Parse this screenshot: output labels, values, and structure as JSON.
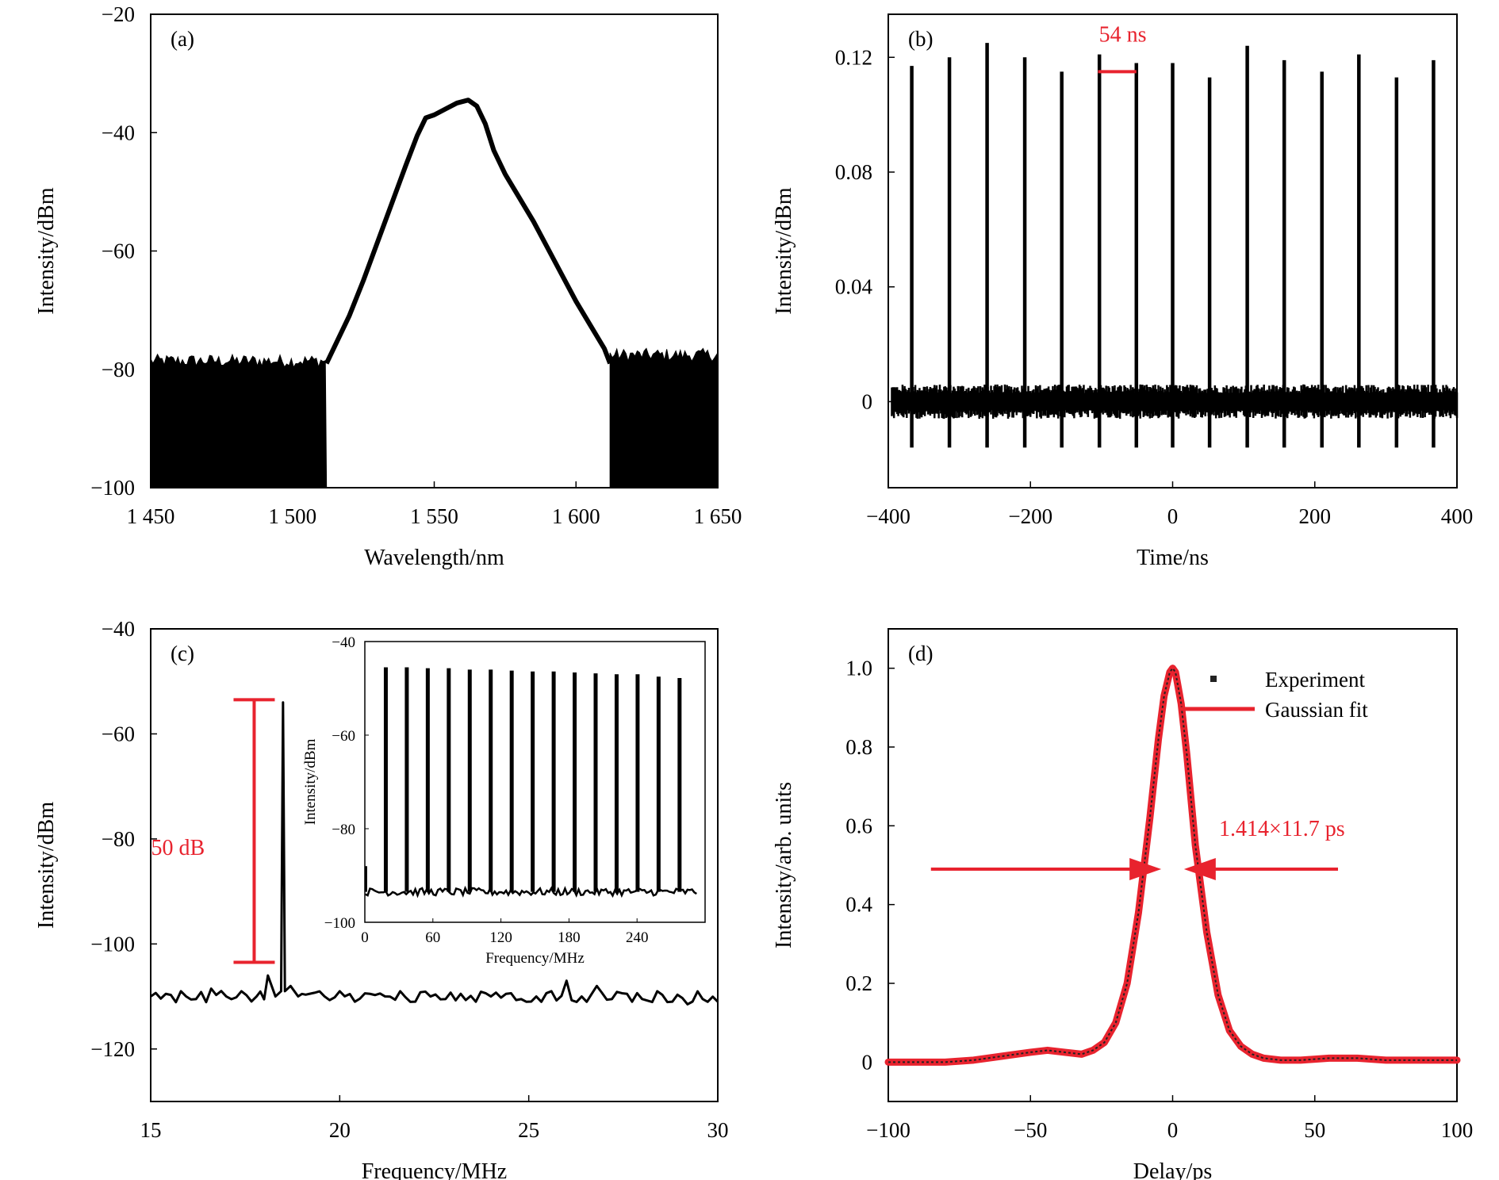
{
  "chart_data": [
    {
      "id": "a",
      "type": "line",
      "panel_label": "(a)",
      "xlabel": "Wavelength/nm",
      "ylabel": "Intensity/dBm",
      "xlim": [
        1450,
        1650
      ],
      "ylim": [
        -100,
        -20
      ],
      "xticks": [
        1450,
        1500,
        1550,
        1600,
        1650
      ],
      "xtick_labels": [
        "1 450",
        "1 500",
        "1 550",
        "1 600",
        "1 650"
      ],
      "yticks": [
        -20,
        -40,
        -60,
        -80,
        -100
      ],
      "ytick_labels": [
        "−20",
        "−40",
        "−60",
        "−80",
        "−100"
      ],
      "noise_floor_dBm": -79,
      "noise_region_left": [
        1450,
        1512
      ],
      "noise_region_right": [
        1612,
        1650
      ],
      "series": [
        {
          "name": "spectrum",
          "x": [
            1512,
            1516,
            1520,
            1525,
            1530,
            1535,
            1540,
            1544,
            1547,
            1550,
            1554,
            1558,
            1562,
            1565,
            1568,
            1571,
            1575,
            1580,
            1585,
            1590,
            1595,
            1600,
            1605,
            1610,
            1612
          ],
          "y": [
            -79,
            -75,
            -71,
            -65,
            -58.5,
            -52,
            -45.5,
            -40.5,
            -37.5,
            -37,
            -36,
            -35,
            -34.5,
            -35.5,
            -38.5,
            -43,
            -47,
            -51,
            -55,
            -59.5,
            -64,
            -68.5,
            -72.5,
            -76.5,
            -79
          ]
        }
      ]
    },
    {
      "id": "b",
      "type": "line",
      "panel_label": "(b)",
      "xlabel": "Time/ns",
      "ylabel": "Intensity/dBm",
      "xlim": [
        -400,
        400
      ],
      "ylim": [
        -0.03,
        0.135
      ],
      "xticks": [
        -400,
        -200,
        0,
        200,
        400
      ],
      "xtick_labels": [
        "−400",
        "−200",
        "0",
        "200",
        "400"
      ],
      "yticks": [
        0,
        0.04,
        0.08,
        0.12
      ],
      "ytick_labels": [
        "0",
        "0.04",
        "0.08",
        "0.12"
      ],
      "pulse_period_ns": 54,
      "baseline": 0,
      "negative_spike": -0.016,
      "pulse_times_ns": [
        -367,
        -314,
        -261,
        -208,
        -156,
        -103,
        -51,
        0,
        52,
        105,
        157,
        210,
        262,
        315,
        367
      ],
      "pulse_peaks": [
        0.117,
        0.12,
        0.125,
        0.12,
        0.115,
        0.121,
        0.118,
        0.118,
        0.113,
        0.124,
        0.119,
        0.115,
        0.121,
        0.113,
        0.119
      ],
      "annotation": {
        "text": "54 ns",
        "x_range": [
          -105,
          -51
        ],
        "y": 0.115
      }
    },
    {
      "id": "c",
      "type": "line",
      "panel_label": "(c)",
      "xlabel": "Frequency/MHz",
      "ylabel": "Intensity/dBm",
      "xlim": [
        15,
        30
      ],
      "ylim": [
        -130,
        -40
      ],
      "xticks": [
        15,
        20,
        25,
        30
      ],
      "xtick_labels": [
        "15",
        "20",
        "25",
        "30"
      ],
      "yticks": [
        -40,
        -60,
        -80,
        -100,
        -120
      ],
      "ytick_labels": [
        "−40",
        "−60",
        "−80",
        "−100",
        "−120"
      ],
      "series": [
        {
          "name": "RF spectrum",
          "x": [
            15.0,
            15.4,
            15.8,
            16.2,
            16.6,
            17.0,
            17.4,
            17.8,
            18.1,
            18.3,
            18.45,
            18.5,
            18.55,
            18.7,
            18.9,
            19.2,
            19.6,
            20.0,
            20.4,
            20.8,
            21.2,
            21.6,
            22.0,
            22.4,
            22.8,
            23.2,
            23.6,
            24.0,
            24.4,
            24.8,
            25.2,
            25.6,
            26.0,
            26.4,
            26.8,
            27.2,
            27.6,
            28.0,
            28.4,
            28.8,
            29.2,
            29.6,
            30.0
          ],
          "y": [
            -110,
            -109.5,
            -109,
            -110.5,
            -108.5,
            -110,
            -109,
            -110,
            -106,
            -110,
            -109,
            -54,
            -109,
            -108,
            -110,
            -109.5,
            -110,
            -109,
            -111,
            -109.5,
            -110,
            -109,
            -111,
            -110,
            -110.5,
            -109.5,
            -111,
            -110,
            -109.5,
            -110.5,
            -110,
            -109,
            -107,
            -110,
            -108,
            -110.5,
            -109.5,
            -110.5,
            -109,
            -111,
            -111.5,
            -110.5,
            -111
          ]
        }
      ],
      "annotation": {
        "text": "50 dB",
        "y_top": -53.5,
        "y_bottom": -103.5,
        "x": 17.8
      },
      "inset": {
        "xlabel": "Frequency/MHz",
        "ylabel": "Intensity/dBm",
        "xlim": [
          0,
          300
        ],
        "ylim": [
          -100,
          -40
        ],
        "xticks": [
          0,
          60,
          120,
          180,
          240
        ],
        "xtick_labels": [
          "0",
          "60",
          "120",
          "180",
          "240"
        ],
        "yticks": [
          -40,
          -60,
          -80,
          -100
        ],
        "ytick_labels": [
          "−40",
          "−60",
          "−80",
          "−100"
        ],
        "baseline_dBm": -93.5,
        "peak_freqs_MHz": [
          18.5,
          37,
          55.5,
          74,
          92.5,
          111,
          129.5,
          148,
          166.5,
          185,
          203.5,
          222,
          240.5,
          259,
          277.5
        ],
        "peak_levels_dBm": [
          -45.5,
          -45.5,
          -45.7,
          -45.7,
          -46,
          -46,
          -46.2,
          -46.4,
          -46.4,
          -46.6,
          -46.8,
          -47,
          -47,
          -47.5,
          -47.8
        ]
      }
    },
    {
      "id": "d",
      "type": "line",
      "panel_label": "(d)",
      "xlabel": "Delay/ps",
      "ylabel": "Intensity/arb. units",
      "xlim": [
        -100,
        100
      ],
      "ylim": [
        -0.1,
        1.1
      ],
      "xticks": [
        -100,
        -50,
        0,
        50,
        100
      ],
      "xtick_labels": [
        "−100",
        "−50",
        "0",
        "50",
        "100"
      ],
      "yticks": [
        0,
        0.2,
        0.4,
        0.6,
        0.8,
        1.0
      ],
      "ytick_labels": [
        "0",
        "0.2",
        "0.4",
        "0.6",
        "0.8",
        "1.0"
      ],
      "legend": [
        {
          "label": "Experiment",
          "color": "#222222"
        },
        {
          "label": "Gaussian fit",
          "color": "#e8232e"
        }
      ],
      "series": [
        {
          "name": "Experiment",
          "x": [
            -100,
            -90,
            -80,
            -70,
            -60,
            -50,
            -44,
            -38,
            -32,
            -28,
            -24,
            -20,
            -16,
            -12,
            -8,
            -5,
            -3,
            -1,
            0,
            1,
            3,
            5,
            8,
            12,
            16,
            20,
            24,
            28,
            32,
            38,
            45,
            55,
            65,
            75,
            85,
            95,
            100
          ],
          "y": [
            0.0,
            0.0,
            0.0,
            0.005,
            0.015,
            0.025,
            0.03,
            0.025,
            0.02,
            0.03,
            0.05,
            0.1,
            0.2,
            0.38,
            0.62,
            0.82,
            0.93,
            0.99,
            1.0,
            0.99,
            0.91,
            0.78,
            0.55,
            0.33,
            0.17,
            0.08,
            0.04,
            0.02,
            0.01,
            0.005,
            0.005,
            0.01,
            0.01,
            0.005,
            0.005,
            0.005,
            0.005
          ]
        },
        {
          "name": "Gaussian fit",
          "x": [
            -100,
            -90,
            -80,
            -70,
            -60,
            -50,
            -44,
            -38,
            -32,
            -28,
            -24,
            -20,
            -16,
            -12,
            -8,
            -5,
            -3,
            -1,
            0,
            1,
            3,
            5,
            8,
            12,
            16,
            20,
            24,
            28,
            32,
            38,
            45,
            55,
            65,
            75,
            85,
            95,
            100
          ],
          "y": [
            0.0,
            0.0,
            0.0,
            0.005,
            0.015,
            0.025,
            0.03,
            0.025,
            0.02,
            0.03,
            0.05,
            0.1,
            0.2,
            0.38,
            0.62,
            0.82,
            0.93,
            0.99,
            1.0,
            0.99,
            0.91,
            0.78,
            0.55,
            0.33,
            0.17,
            0.08,
            0.04,
            0.02,
            0.01,
            0.005,
            0.005,
            0.01,
            0.01,
            0.005,
            0.005,
            0.005,
            0.005
          ]
        }
      ],
      "annotation": {
        "text": "1.414×11.7 ps",
        "arrow_y": 0.49,
        "left_arrow_x": [
          -85,
          -4
        ],
        "right_arrow_x": [
          4,
          100
        ]
      }
    }
  ],
  "colors": {
    "axis": "#000000",
    "trace": "#000000",
    "annotation": "#e8232e",
    "fit": "#e8232e",
    "experiment": "#222222"
  }
}
